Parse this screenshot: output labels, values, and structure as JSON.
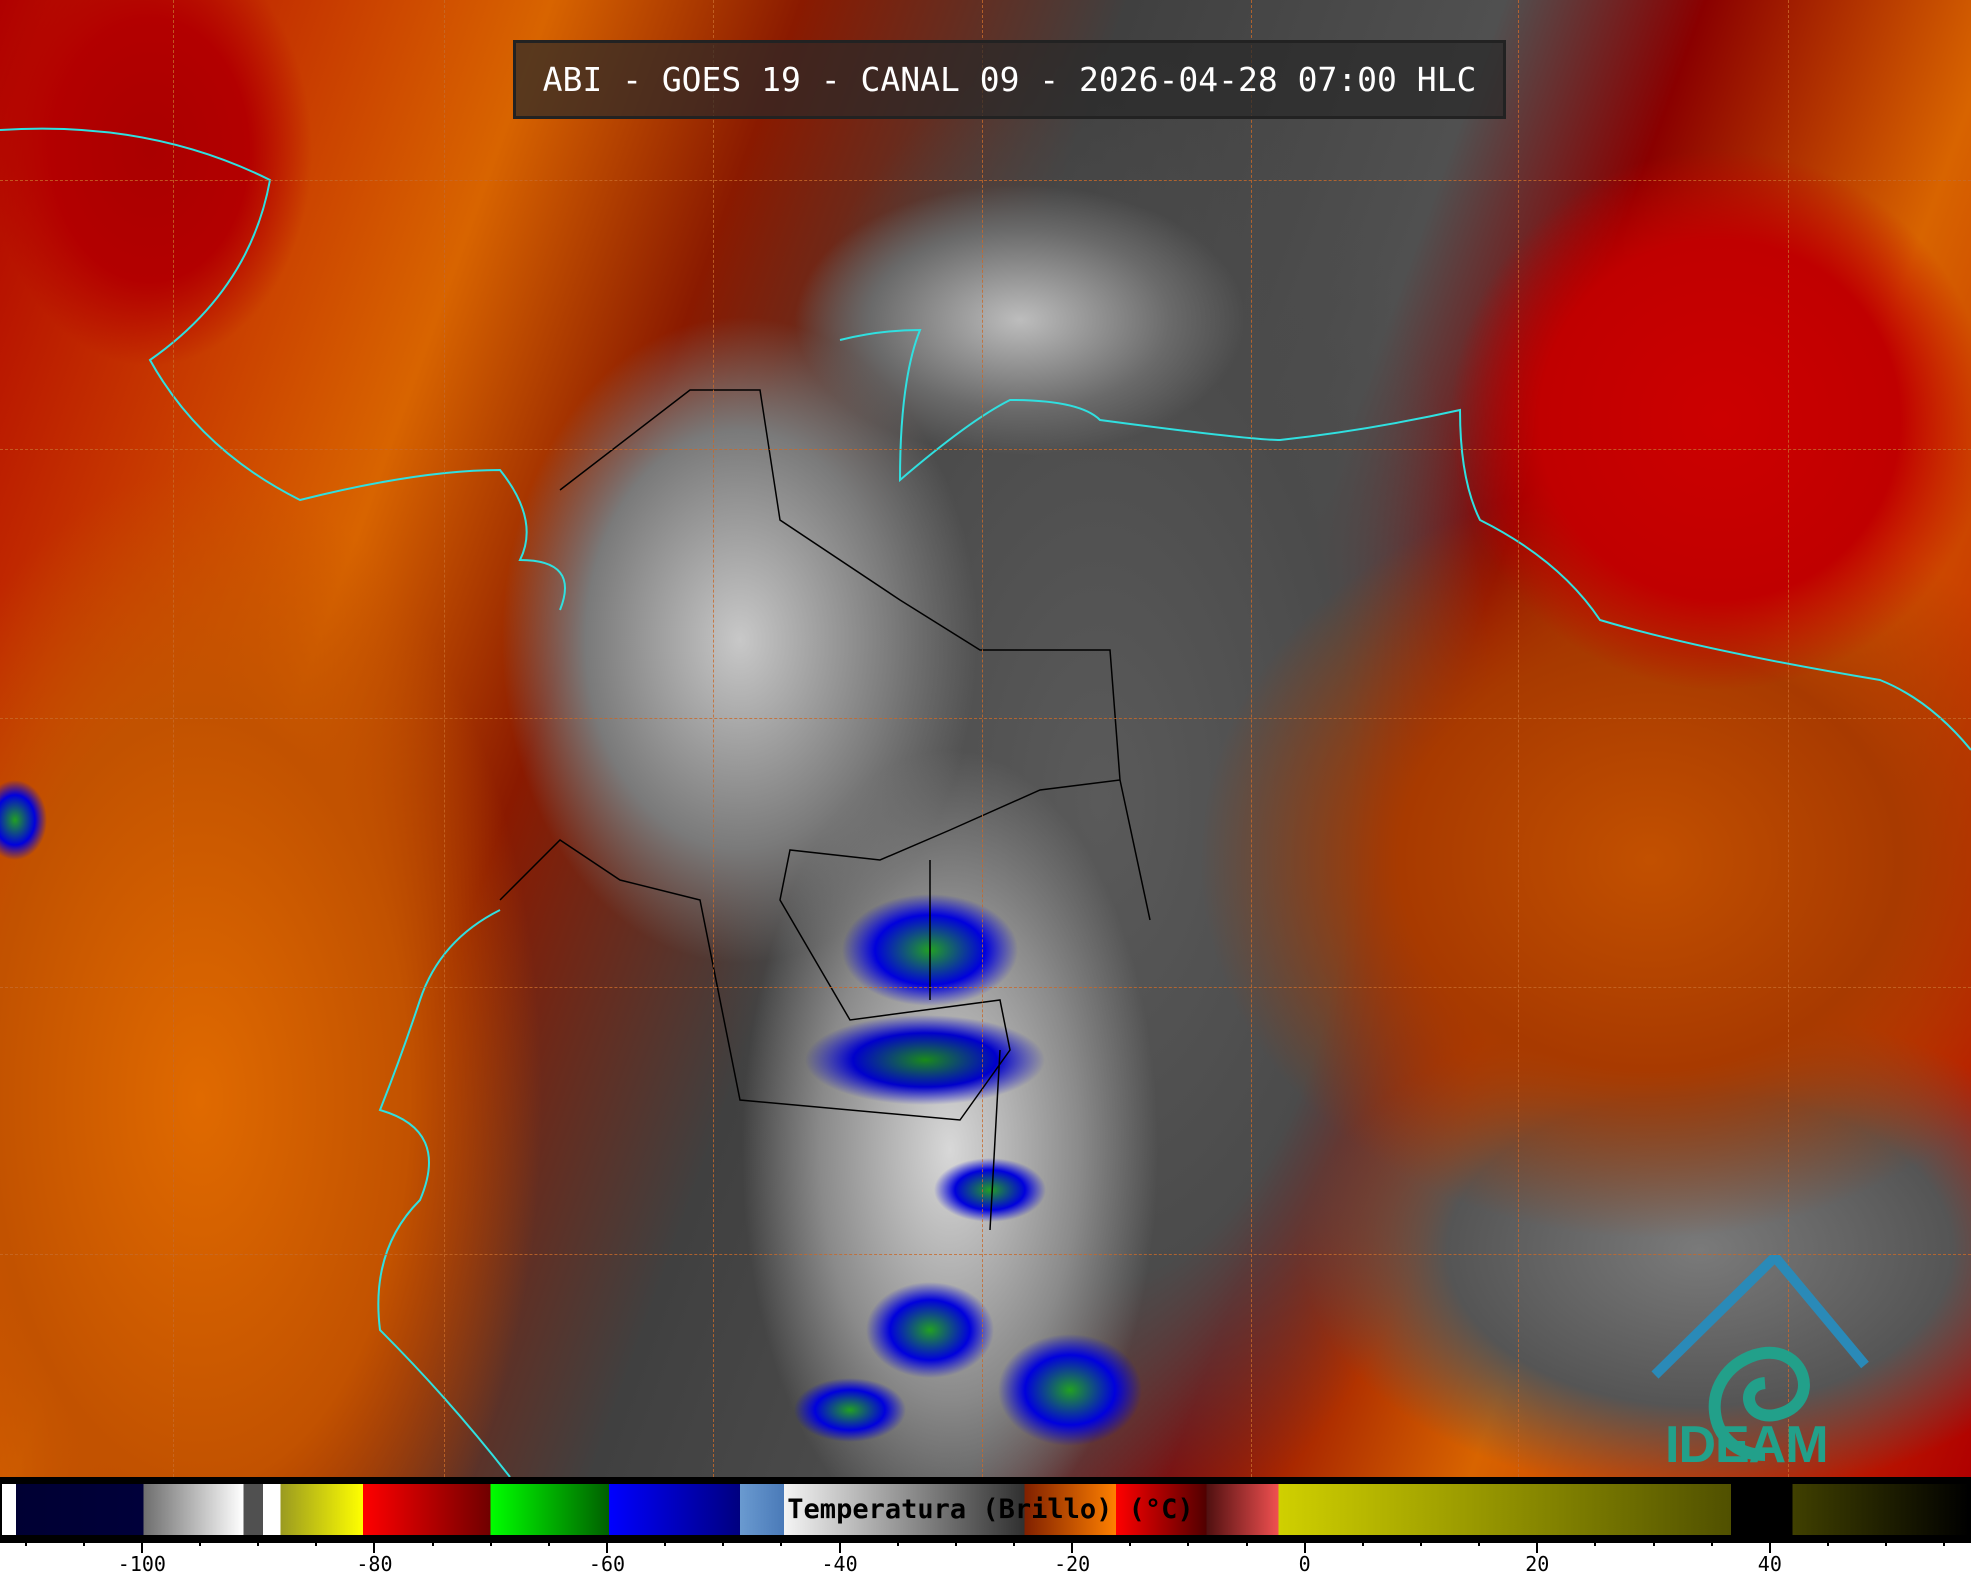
{
  "title": "ABI - GOES 19 - CANAL 09 - 2026-04-28 07:00 HLC",
  "logo": {
    "text": "IDEAM",
    "color": "#22a08a"
  },
  "colorbar": {
    "label": "Temperatura (Brillo) (°C)",
    "range": [
      -112.2,
      57.3
    ],
    "major_ticks": [
      -100,
      -80,
      -60,
      -40,
      -20,
      0,
      20,
      40
    ],
    "tick_labels": [
      "-100",
      "-80",
      "-60",
      "-40",
      "-20",
      "0",
      "20",
      "40"
    ],
    "minor_step": 5,
    "stops": [
      {
        "from": -112.2,
        "to": -111,
        "c1": "#ffffff",
        "c2": "#ffffff"
      },
      {
        "from": -111,
        "to": -100,
        "c1": "#000033",
        "c2": "#00003a"
      },
      {
        "from": -100,
        "to": -91.4,
        "c1": "#6e6e6e",
        "c2": "#ffffff"
      },
      {
        "from": -91.4,
        "to": -89.7,
        "c1": "#505050",
        "c2": "#505050"
      },
      {
        "from": -89.7,
        "to": -88.2,
        "c1": "#ffffff",
        "c2": "#ffffff"
      },
      {
        "from": -88.2,
        "to": -81.1,
        "c1": "#9a9a20",
        "c2": "#ffff00"
      },
      {
        "from": -81.1,
        "to": -70.1,
        "c1": "#ff0000",
        "c2": "#700000"
      },
      {
        "from": -70.1,
        "to": -59.9,
        "c1": "#00ff00",
        "c2": "#006000"
      },
      {
        "from": -59.9,
        "to": -48.6,
        "c1": "#0000ff",
        "c2": "#000080"
      },
      {
        "from": -48.6,
        "to": -44.8,
        "c1": "#6a9ad0",
        "c2": "#4a7ab8"
      },
      {
        "from": -44.8,
        "to": -24.1,
        "c1": "#f4f4f4",
        "c2": "#303030"
      },
      {
        "from": -24.1,
        "to": -16.2,
        "c1": "#802000",
        "c2": "#ff8000"
      },
      {
        "from": -16.2,
        "to": -8.4,
        "c1": "#ff0000",
        "c2": "#500000"
      },
      {
        "from": -8.4,
        "to": -2.2,
        "c1": "#501010",
        "c2": "#f05050"
      },
      {
        "from": -2.2,
        "to": 36.8,
        "c1": "#d0d000",
        "c2": "#505000"
      },
      {
        "from": 36.8,
        "to": 42.1,
        "c1": "#000000",
        "c2": "#000000"
      },
      {
        "from": 42.1,
        "to": 57.3,
        "c1": "#404000",
        "c2": "#000000"
      }
    ]
  },
  "colors": {
    "coastline": "#30e0e0",
    "borders": "#000000",
    "graticule": "#c86a2a"
  }
}
